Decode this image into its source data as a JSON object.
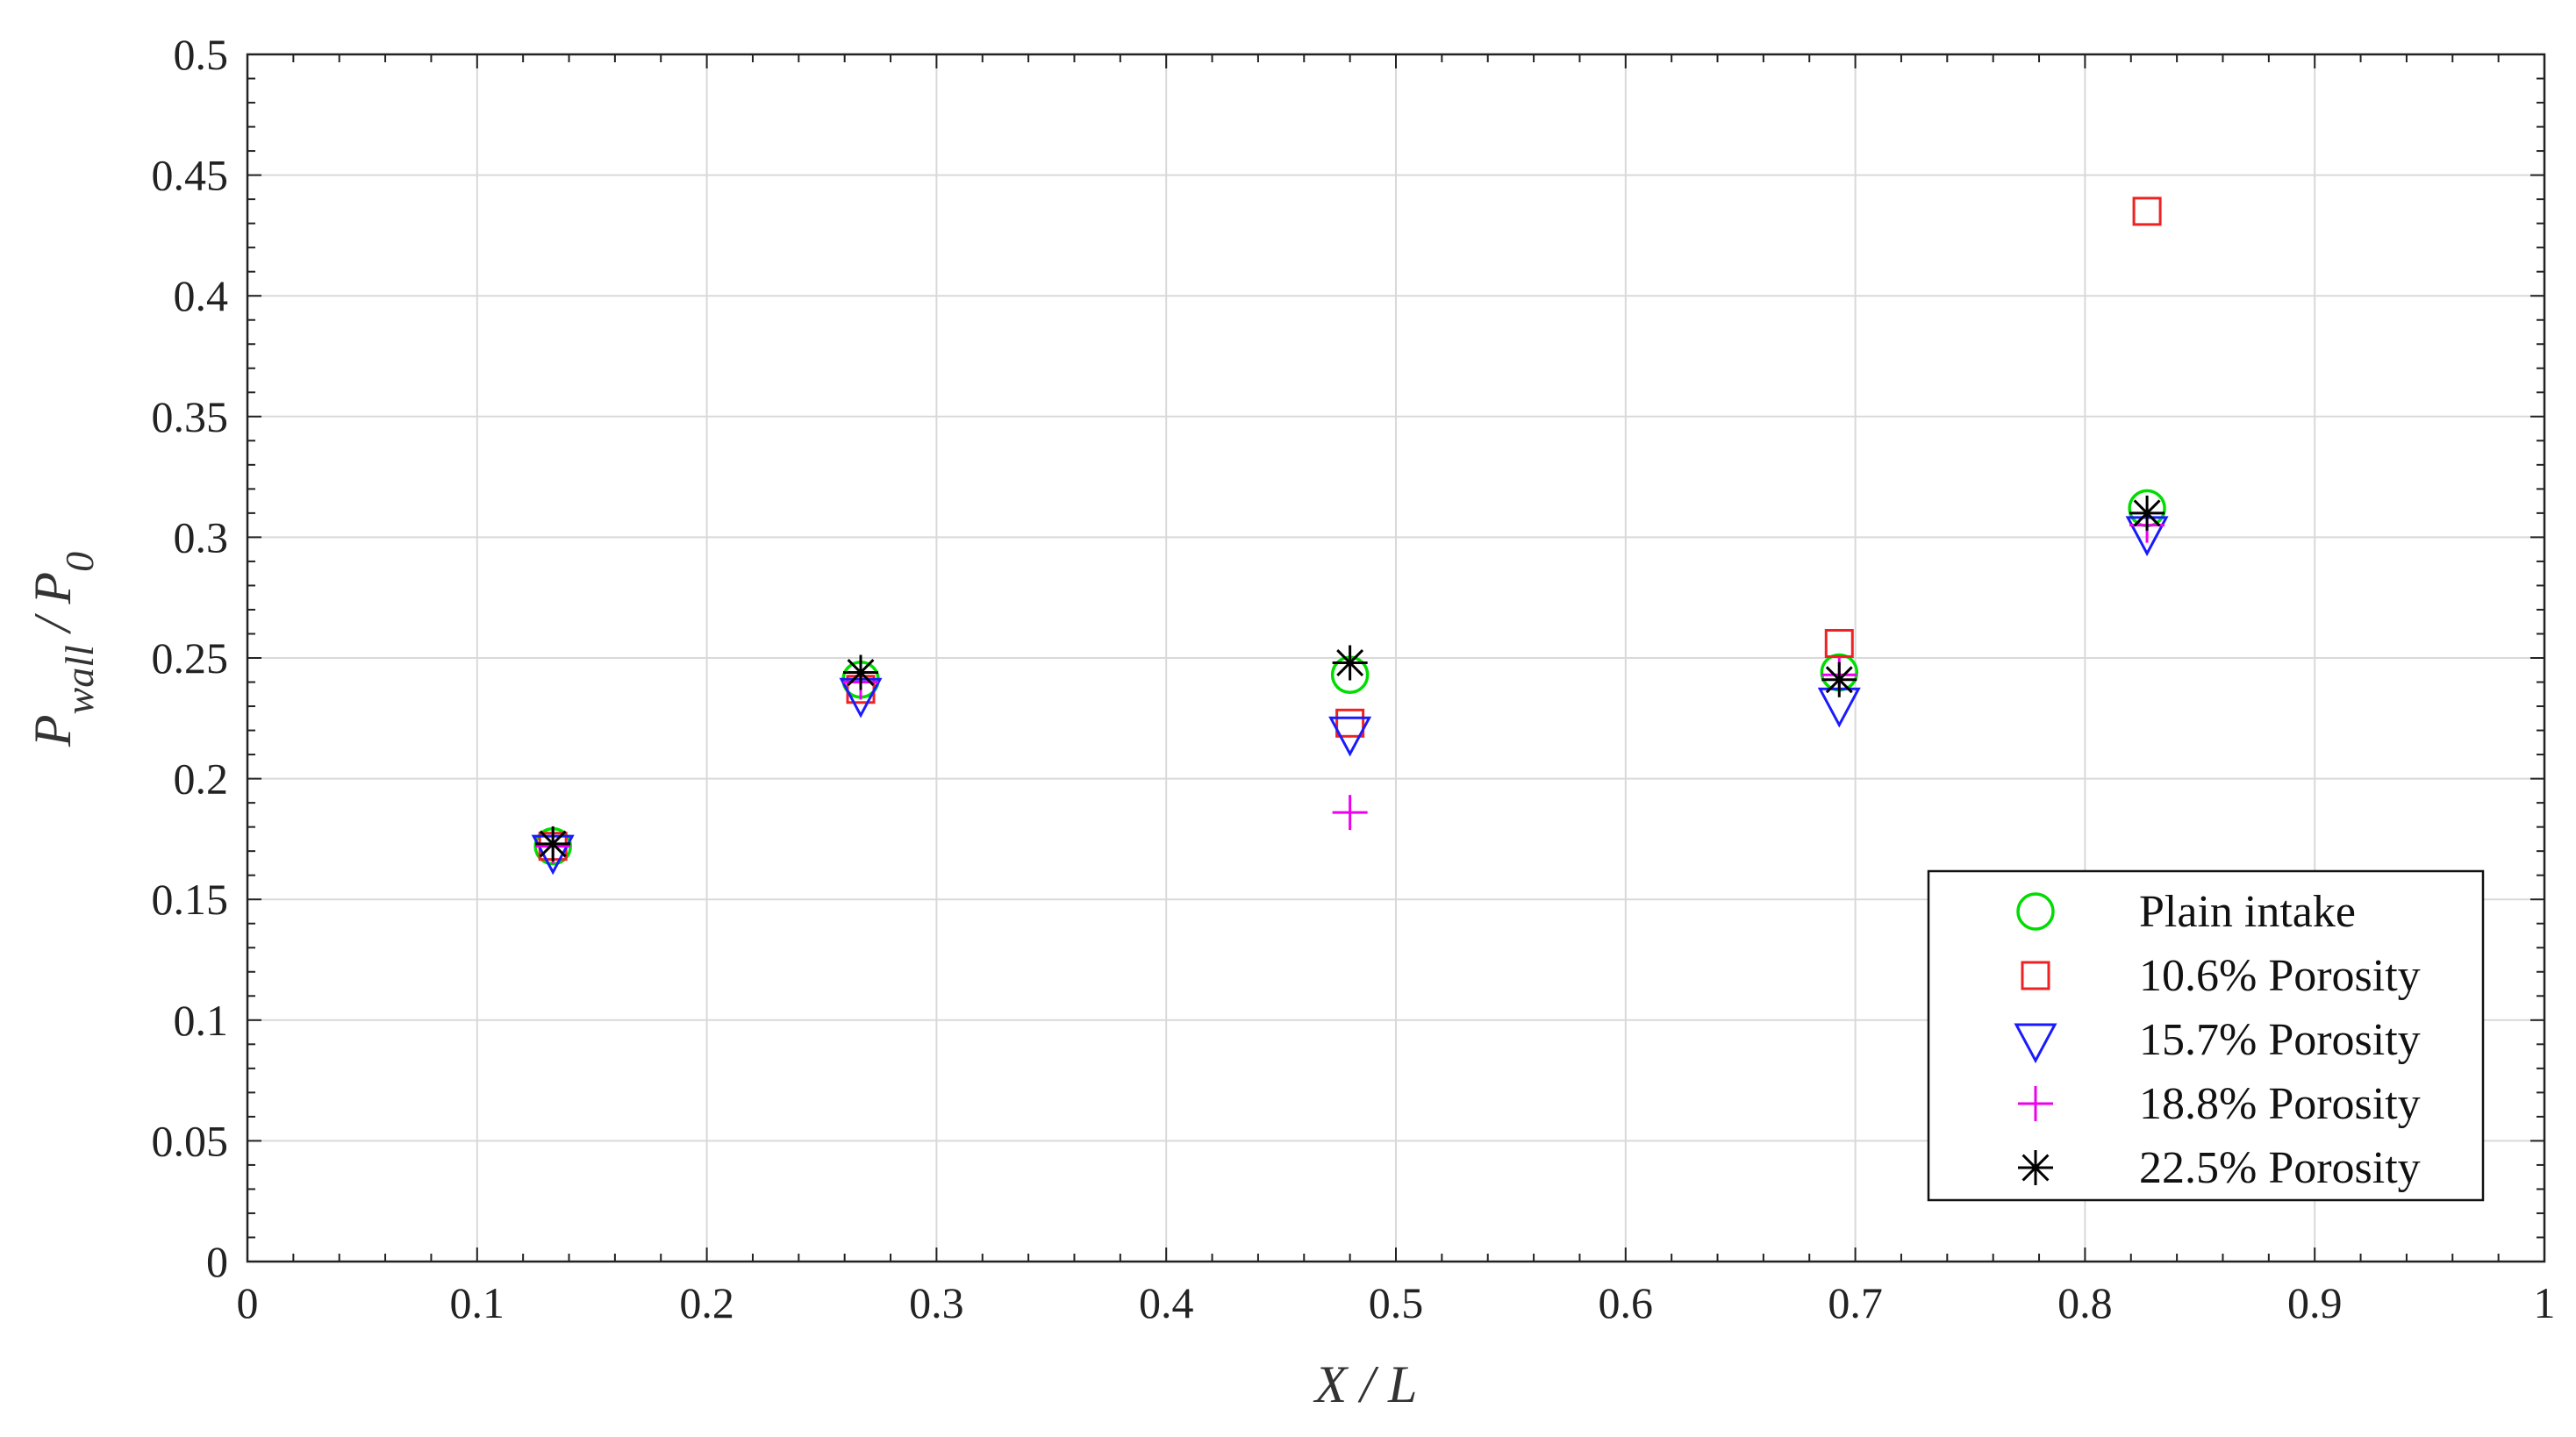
{
  "chart_data": {
    "type": "scatter",
    "title": "",
    "xlabel": {
      "main": "X",
      "sep": " / ",
      "tail": "L"
    },
    "ylabel": {
      "p1": "P",
      "sub1": "wall",
      "sep": " / ",
      "p2": "P",
      "sub2": "0"
    },
    "xlim": [
      0,
      1
    ],
    "ylim": [
      0,
      0.5
    ],
    "x_ticks": [
      "0",
      "0.1",
      "0.2",
      "0.3",
      "0.4",
      "0.5",
      "0.6",
      "0.7",
      "0.8",
      "0.9",
      "1"
    ],
    "y_ticks": [
      "0",
      "0.05",
      "0.1",
      "0.15",
      "0.2",
      "0.25",
      "0.3",
      "0.35",
      "0.4",
      "0.45",
      "0.5"
    ],
    "grid": true,
    "legend_position": "bottom-right",
    "series": [
      {
        "name": "Plain intake",
        "marker": "circle",
        "color": "#00dd00",
        "x": [
          0.133,
          0.267,
          0.48,
          0.693,
          0.827
        ],
        "y": [
          0.172,
          0.241,
          0.243,
          0.244,
          0.312
        ]
      },
      {
        "name": "10.6% Porosity",
        "marker": "square",
        "color": "#ee2222",
        "x": [
          0.133,
          0.267,
          0.48,
          0.693,
          0.827
        ],
        "y": [
          0.172,
          0.237,
          0.223,
          0.256,
          0.435
        ]
      },
      {
        "name": "15.7% Porosity",
        "marker": "triangle-down",
        "color": "#1a1aff",
        "x": [
          0.133,
          0.267,
          0.48,
          0.693,
          0.827
        ],
        "y": [
          0.17,
          0.235,
          0.219,
          0.231,
          0.302
        ]
      },
      {
        "name": "18.8% Porosity",
        "marker": "plus",
        "color": "#ee00ee",
        "x": [
          0.133,
          0.267,
          0.48,
          0.693,
          0.827
        ],
        "y": [
          0.172,
          0.24,
          0.186,
          0.243,
          0.305
        ]
      },
      {
        "name": "22.5% Porosity",
        "marker": "asterisk",
        "color": "#000000",
        "x": [
          0.133,
          0.267,
          0.48,
          0.693,
          0.827
        ],
        "y": [
          0.173,
          0.244,
          0.248,
          0.241,
          0.31
        ]
      }
    ]
  }
}
